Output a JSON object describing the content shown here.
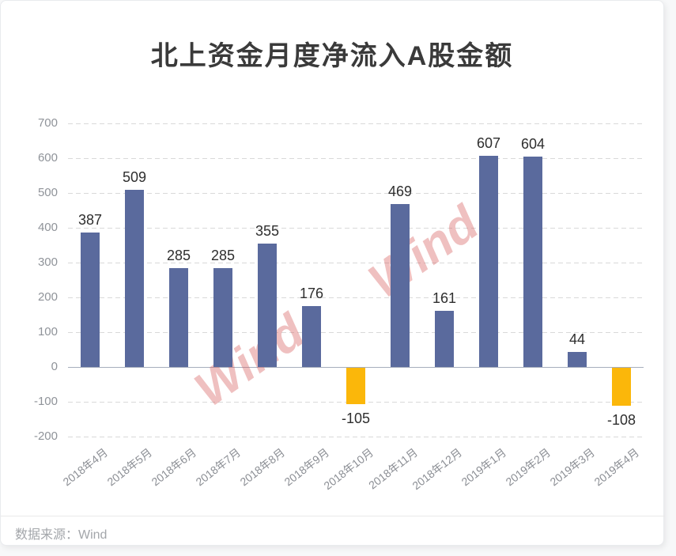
{
  "title": "北上资金月度净流入A股金额",
  "source": "数据来源：Wind",
  "watermark": {
    "text": "Wind",
    "color": "rgba(216,98,98,0.40)",
    "instances": 2
  },
  "colors": {
    "positive_bar": "#5a6a9d",
    "negative_bar": "#fbb70a",
    "grid": "#d9d9d9",
    "zero_axis": "#a6aebd",
    "value_label": "#2e2e2e",
    "axis_label": "#8f9399",
    "title": "#3a3a3a",
    "source": "#a3a6aa"
  },
  "chart_data": {
    "type": "bar",
    "title": "北上资金月度净流入A股金额",
    "categories": [
      "2018年4月",
      "2018年5月",
      "2018年6月",
      "2018年7月",
      "2018年8月",
      "2018年9月",
      "2018年10月",
      "2018年11月",
      "2018年12月",
      "2019年1月",
      "2019年2月",
      "2019年3月",
      "2019年4月"
    ],
    "values": [
      387,
      509,
      285,
      285,
      355,
      176,
      -105,
      469,
      161,
      607,
      604,
      44,
      -108
    ],
    "xlabel": "",
    "ylabel": "",
    "ylim": [
      -200,
      700
    ],
    "ytick_interval": 100,
    "grid": "horizontal-dashed",
    "legend_position": "none",
    "bar_colors_rule": "positive=#5a6a9d, negative=#fbb70a",
    "data_labels": "shown above positive bars, below negative bars",
    "source_note": "数据来源：Wind"
  }
}
